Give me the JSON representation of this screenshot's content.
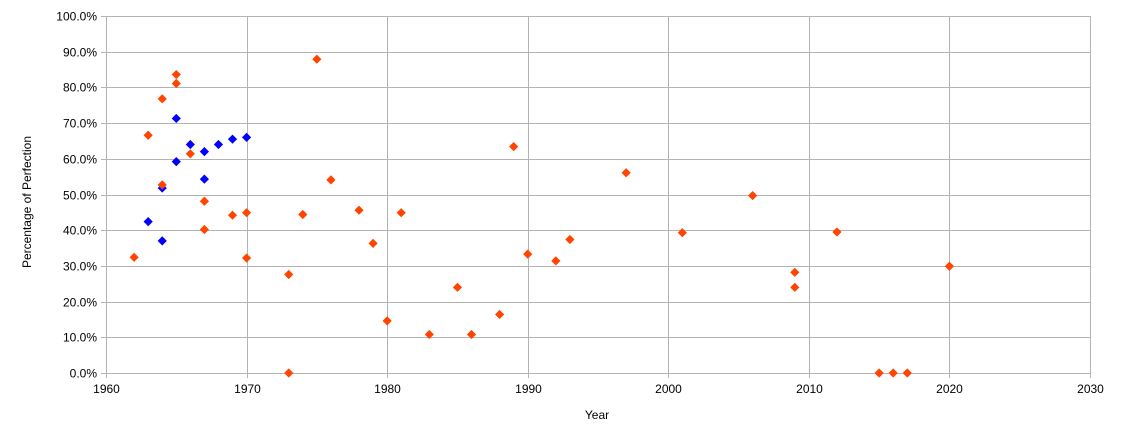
{
  "chart_data": {
    "type": "scatter",
    "xlabel": "Year",
    "ylabel": "Percentage of Perfection",
    "xlim": [
      1960,
      2030
    ],
    "ylim": [
      0,
      1.0
    ],
    "x_ticks": [
      1960,
      1970,
      1980,
      1990,
      2000,
      2010,
      2020,
      2030
    ],
    "x_tick_labels": [
      "1960",
      "1970",
      "1980",
      "1990",
      "2000",
      "2010",
      "2020",
      "2030"
    ],
    "y_ticks": [
      0,
      0.1,
      0.2,
      0.3,
      0.4,
      0.5,
      0.6,
      0.7,
      0.8,
      0.9,
      1.0
    ],
    "y_tick_labels": [
      "0.0%",
      "10.0%",
      "20.0%",
      "30.0%",
      "40.0%",
      "50.0%",
      "60.0%",
      "70.0%",
      "80.0%",
      "90.0%",
      "100.0%"
    ],
    "grid": true,
    "marker": "diamond",
    "series": [
      {
        "color": "#0000ff",
        "points": [
          {
            "x": 1963,
            "y": 0.424
          },
          {
            "x": 1964,
            "y": 0.518
          },
          {
            "x": 1964,
            "y": 0.37
          },
          {
            "x": 1965,
            "y": 0.713
          },
          {
            "x": 1965,
            "y": 0.592
          },
          {
            "x": 1966,
            "y": 0.64
          },
          {
            "x": 1967,
            "y": 0.62
          },
          {
            "x": 1967,
            "y": 0.543
          },
          {
            "x": 1968,
            "y": 0.64
          },
          {
            "x": 1969,
            "y": 0.655
          },
          {
            "x": 1970,
            "y": 0.66
          }
        ]
      },
      {
        "color": "#ff4500",
        "points": [
          {
            "x": 1962,
            "y": 0.324
          },
          {
            "x": 1963,
            "y": 0.666
          },
          {
            "x": 1964,
            "y": 0.768
          },
          {
            "x": 1964,
            "y": 0.527
          },
          {
            "x": 1965,
            "y": 0.836
          },
          {
            "x": 1965,
            "y": 0.811
          },
          {
            "x": 1966,
            "y": 0.614
          },
          {
            "x": 1967,
            "y": 0.481
          },
          {
            "x": 1967,
            "y": 0.402
          },
          {
            "x": 1969,
            "y": 0.442
          },
          {
            "x": 1970,
            "y": 0.449
          },
          {
            "x": 1970,
            "y": 0.322
          },
          {
            "x": 1973,
            "y": 0.276
          },
          {
            "x": 1973,
            "y": 0.0
          },
          {
            "x": 1974,
            "y": 0.444
          },
          {
            "x": 1975,
            "y": 0.879
          },
          {
            "x": 1976,
            "y": 0.541
          },
          {
            "x": 1978,
            "y": 0.456
          },
          {
            "x": 1979,
            "y": 0.363
          },
          {
            "x": 1980,
            "y": 0.146
          },
          {
            "x": 1981,
            "y": 0.449
          },
          {
            "x": 1983,
            "y": 0.108
          },
          {
            "x": 1985,
            "y": 0.24
          },
          {
            "x": 1986,
            "y": 0.108
          },
          {
            "x": 1988,
            "y": 0.164
          },
          {
            "x": 1989,
            "y": 0.634
          },
          {
            "x": 1990,
            "y": 0.333
          },
          {
            "x": 1992,
            "y": 0.314
          },
          {
            "x": 1993,
            "y": 0.374
          },
          {
            "x": 1997,
            "y": 0.561
          },
          {
            "x": 2001,
            "y": 0.393
          },
          {
            "x": 2006,
            "y": 0.497
          },
          {
            "x": 2009,
            "y": 0.282
          },
          {
            "x": 2009,
            "y": 0.24
          },
          {
            "x": 2012,
            "y": 0.395
          },
          {
            "x": 2015,
            "y": 0.0
          },
          {
            "x": 2016,
            "y": 0.0
          },
          {
            "x": 2017,
            "y": 0.0
          },
          {
            "x": 2020,
            "y": 0.299
          }
        ]
      }
    ]
  }
}
